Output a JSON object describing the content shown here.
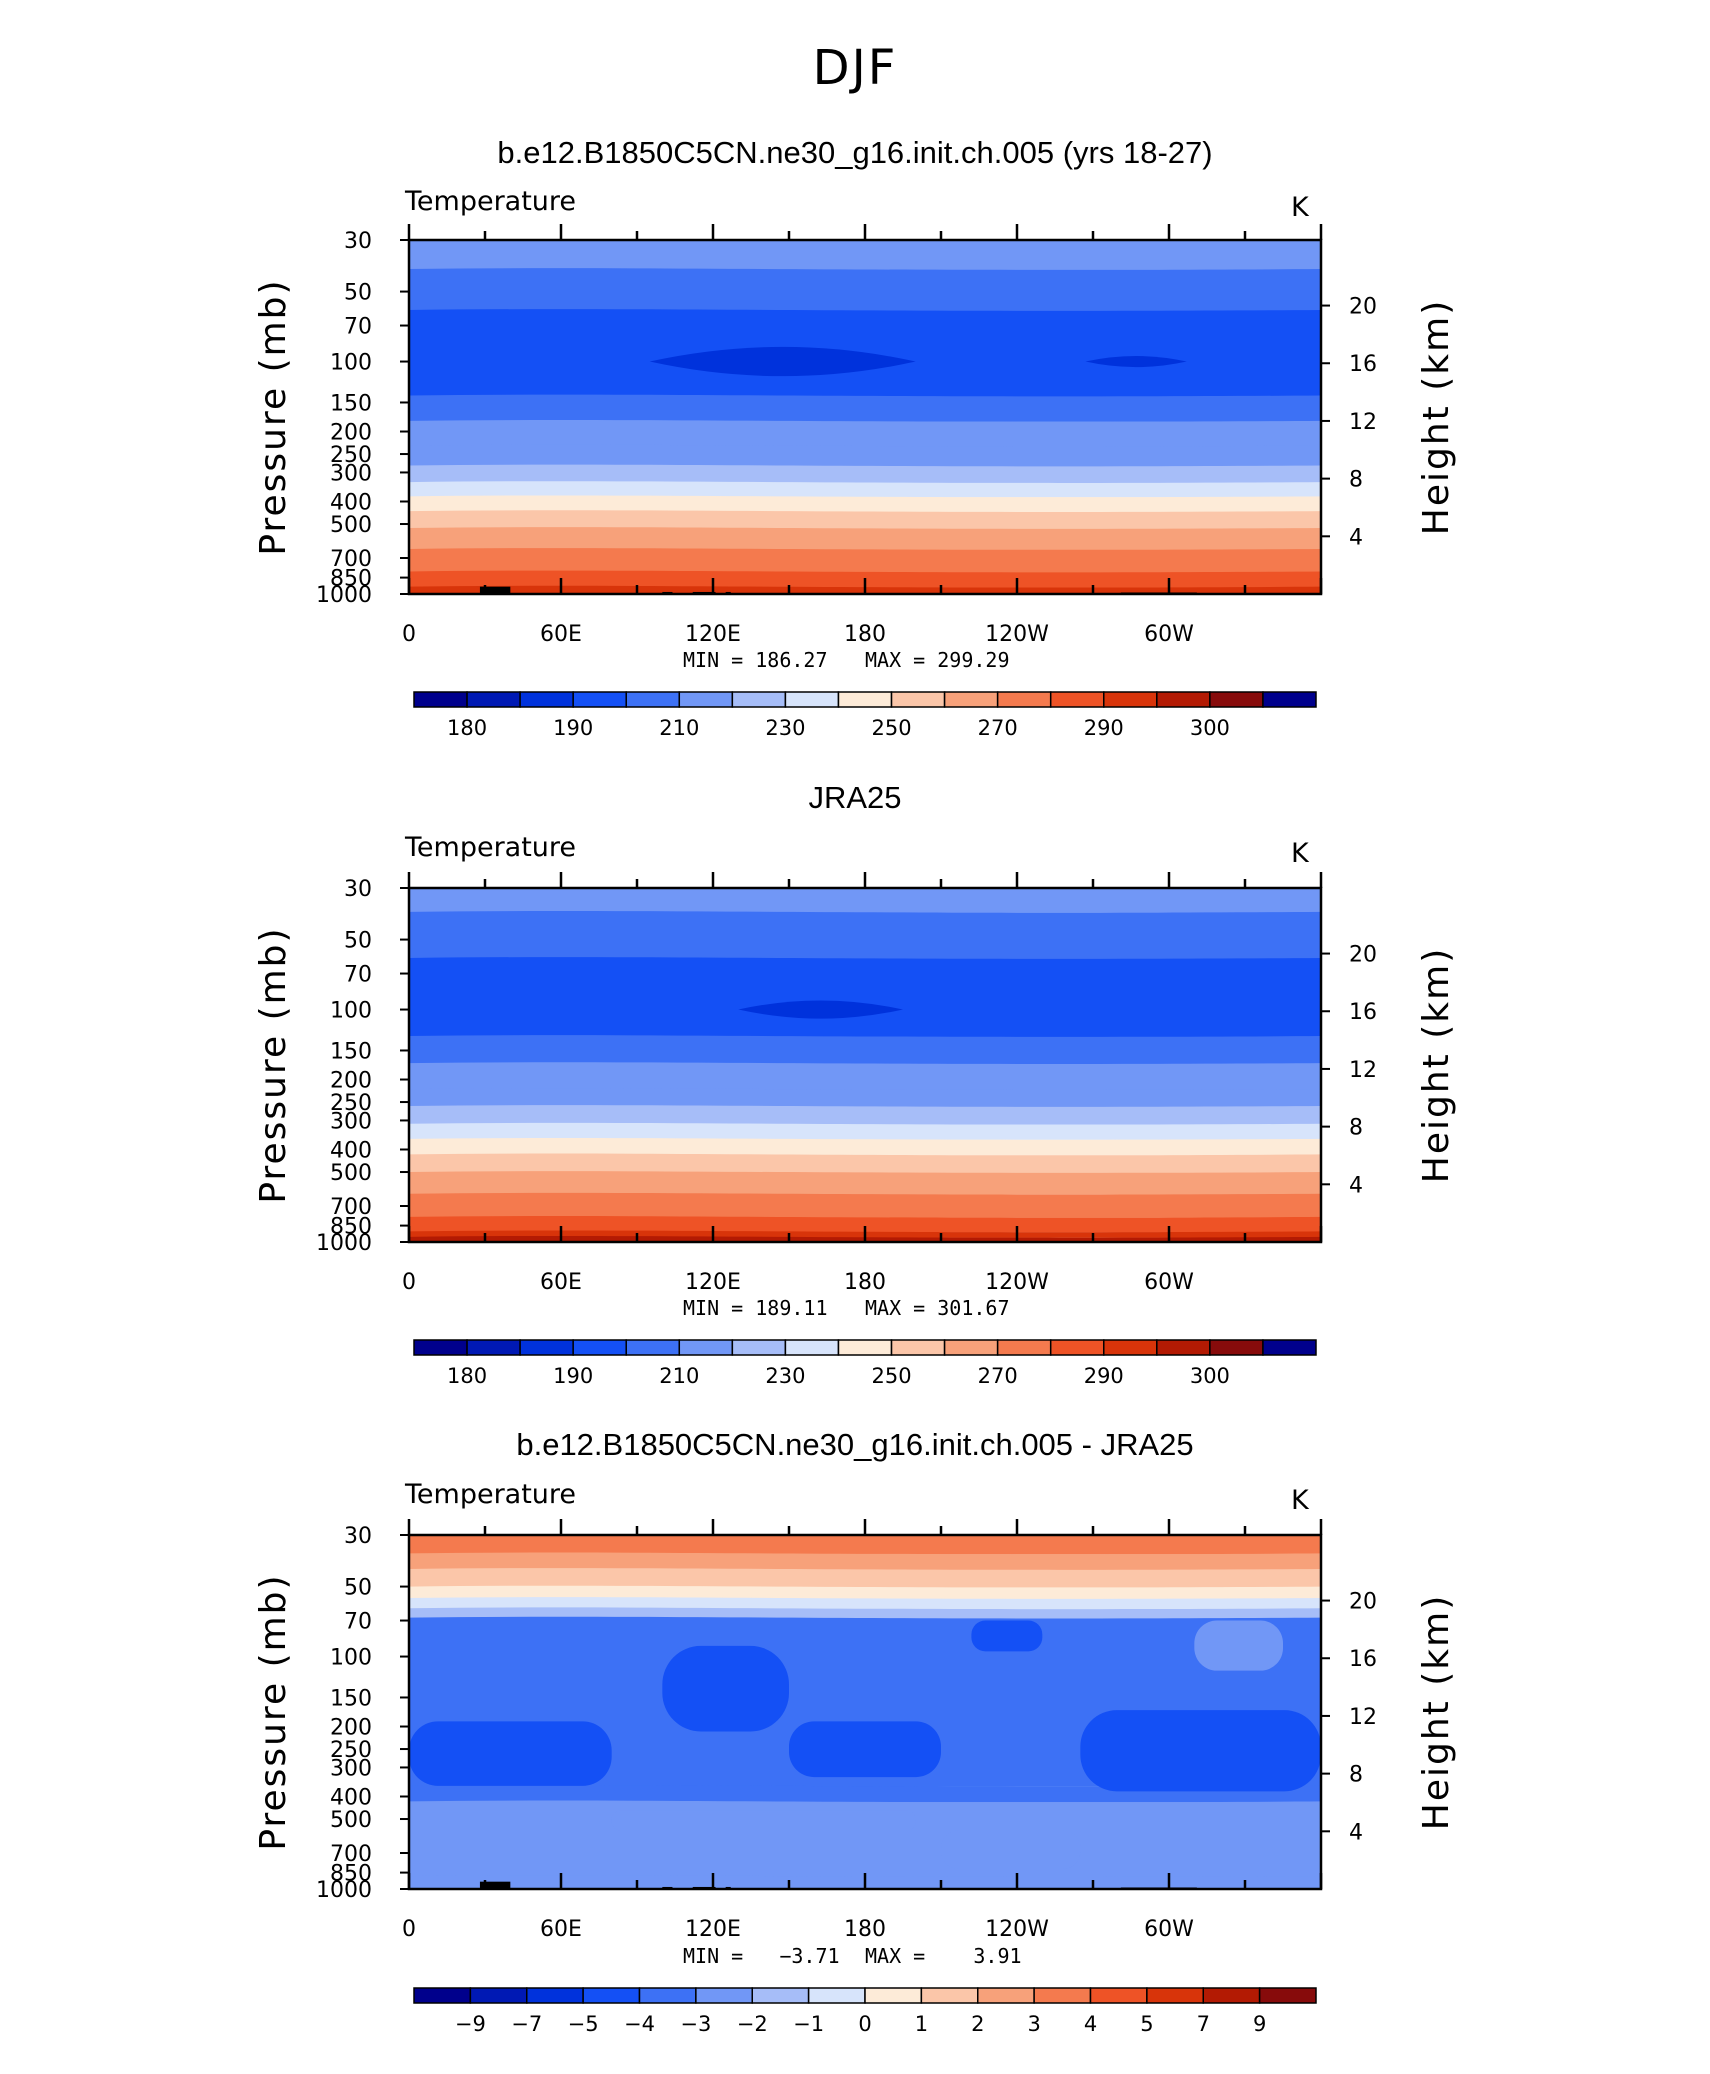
{
  "figure": {
    "title": "DJF"
  },
  "chart_data": [
    {
      "type": "heatmap",
      "title": "b.e12.B1850C5CN.ne30_g16.init.ch.005 (yrs 18-27)",
      "variable": "Temperature",
      "units": "K",
      "xlabel": "",
      "ylabel": "Pressure (mb)",
      "ylabel_right": "Height (km)",
      "x_ticks": [
        "0",
        "60E",
        "120E",
        "180",
        "120W",
        "60W"
      ],
      "x_tick_values": [
        0,
        60,
        120,
        180,
        240,
        300
      ],
      "xlim": [
        0,
        360
      ],
      "pressure_ticks": [
        30,
        50,
        70,
        100,
        150,
        200,
        250,
        300,
        400,
        500,
        700,
        850,
        1000
      ],
      "ylim": [
        1000,
        30
      ],
      "height_ticks": [
        20,
        16,
        12,
        8,
        4
      ],
      "min_text": "MIN = 186.27",
      "max_text": "MAX = 299.29",
      "min": 186.27,
      "max": 299.29,
      "colorbar_labels": [
        "180",
        "190",
        "210",
        "230",
        "250",
        "270",
        "290",
        "300"
      ],
      "colorbar_values": [
        175,
        180,
        185,
        190,
        200,
        210,
        220,
        230,
        240,
        250,
        260,
        270,
        280,
        290,
        295,
        300
      ],
      "bands": [
        {
          "p": 30,
          "value": 215
        },
        {
          "p": 40,
          "value": 205
        },
        {
          "p": 60,
          "value": 195
        },
        {
          "p": 100,
          "value": 195
        },
        {
          "p": 140,
          "value": 200
        },
        {
          "p": 180,
          "value": 210
        },
        {
          "p": 230,
          "value": 215
        },
        {
          "p": 280,
          "value": 225
        },
        {
          "p": 330,
          "value": 235
        },
        {
          "p": 380,
          "value": 245
        },
        {
          "p": 440,
          "value": 255
        },
        {
          "p": 520,
          "value": 265
        },
        {
          "p": 640,
          "value": 275
        },
        {
          "p": 800,
          "value": 285
        },
        {
          "p": 930,
          "value": 292
        }
      ],
      "cold_cores": [
        {
          "lon_start": 95,
          "lon_end": 200,
          "p_center": 100,
          "value": 185
        },
        {
          "lon_start": 267,
          "lon_end": 307,
          "p_center": 100,
          "value": 185
        }
      ],
      "topography": true
    },
    {
      "type": "heatmap",
      "title": "JRA25",
      "variable": "Temperature",
      "units": "K",
      "xlabel": "",
      "ylabel": "Pressure (mb)",
      "ylabel_right": "Height (km)",
      "x_ticks": [
        "0",
        "60E",
        "120E",
        "180",
        "120W",
        "60W"
      ],
      "x_tick_values": [
        0,
        60,
        120,
        180,
        240,
        300
      ],
      "xlim": [
        0,
        360
      ],
      "pressure_ticks": [
        30,
        50,
        70,
        100,
        150,
        200,
        250,
        300,
        400,
        500,
        700,
        850,
        1000
      ],
      "ylim": [
        1000,
        30
      ],
      "height_ticks": [
        20,
        16,
        12,
        8,
        4
      ],
      "min_text": "MIN = 189.11",
      "max_text": "MAX = 301.67",
      "min": 189.11,
      "max": 301.67,
      "colorbar_labels": [
        "180",
        "190",
        "210",
        "230",
        "250",
        "270",
        "290",
        "300"
      ],
      "colorbar_values": [
        175,
        180,
        185,
        190,
        200,
        210,
        220,
        230,
        240,
        250,
        260,
        270,
        280,
        290,
        295,
        300
      ],
      "bands": [
        {
          "p": 30,
          "value": 215
        },
        {
          "p": 38,
          "value": 205
        },
        {
          "p": 60,
          "value": 195
        },
        {
          "p": 130,
          "value": 200
        },
        {
          "p": 170,
          "value": 210
        },
        {
          "p": 220,
          "value": 215
        },
        {
          "p": 260,
          "value": 225
        },
        {
          "p": 310,
          "value": 235
        },
        {
          "p": 360,
          "value": 245
        },
        {
          "p": 420,
          "value": 255
        },
        {
          "p": 500,
          "value": 265
        },
        {
          "p": 620,
          "value": 275
        },
        {
          "p": 780,
          "value": 285
        },
        {
          "p": 900,
          "value": 292
        },
        {
          "p": 950,
          "value": 297
        }
      ],
      "cold_cores": [
        {
          "lon_start": 130,
          "lon_end": 195,
          "p_center": 100,
          "value": 185
        }
      ],
      "topography": false
    },
    {
      "type": "heatmap",
      "title": "b.e12.B1850C5CN.ne30_g16.init.ch.005 - JRA25",
      "variable": "Temperature",
      "units": "K",
      "xlabel": "",
      "ylabel": "Pressure (mb)",
      "ylabel_right": "Height (km)",
      "x_ticks": [
        "0",
        "60E",
        "120E",
        "180",
        "120W",
        "60W"
      ],
      "x_tick_values": [
        0,
        60,
        120,
        180,
        240,
        300
      ],
      "xlim": [
        0,
        360
      ],
      "pressure_ticks": [
        30,
        50,
        70,
        100,
        150,
        200,
        250,
        300,
        400,
        500,
        700,
        850,
        1000
      ],
      "ylim": [
        1000,
        30
      ],
      "height_ticks": [
        20,
        16,
        12,
        8,
        4
      ],
      "min_text": "MIN =   −3.71",
      "max_text": "MAX =    3.91",
      "min": -3.71,
      "max": 3.91,
      "colorbar_labels": [
        "−9",
        "−7",
        "−5",
        "−4",
        "−3",
        "−2",
        "−1",
        "0",
        "1",
        "2",
        "3",
        "4",
        "5",
        "7",
        "9"
      ],
      "colorbar_values": [
        -9,
        -7,
        -5,
        -4,
        -3,
        -2,
        -1,
        0,
        1,
        2,
        3,
        4,
        5,
        7,
        9
      ],
      "bands": [
        {
          "p": 30,
          "value": 4.5
        },
        {
          "p": 36,
          "value": 3.5
        },
        {
          "p": 42,
          "value": 2.5
        },
        {
          "p": 50,
          "value": 1.5
        },
        {
          "p": 56,
          "value": 0.5
        },
        {
          "p": 62,
          "value": -0.5
        },
        {
          "p": 68,
          "value": -2.5
        },
        {
          "p": 360,
          "value": -2.5
        },
        {
          "p": 420,
          "value": -1.5
        },
        {
          "p": 880,
          "value": -1.5
        }
      ],
      "anomaly_patches": [
        {
          "lon_start": 0,
          "lon_end": 80,
          "p_top": 190,
          "p_bottom": 360,
          "value": -3.5
        },
        {
          "lon_start": 100,
          "lon_end": 150,
          "p_top": 90,
          "p_bottom": 210,
          "value": -3.5
        },
        {
          "lon_start": 150,
          "lon_end": 210,
          "p_top": 190,
          "p_bottom": 330,
          "value": -3.5
        },
        {
          "lon_start": 265,
          "lon_end": 360,
          "p_top": 170,
          "p_bottom": 380,
          "value": -3.5
        },
        {
          "lon_start": 222,
          "lon_end": 250,
          "p_top": 70,
          "p_bottom": 95,
          "value": -3.5
        },
        {
          "lon_start": 310,
          "lon_end": 345,
          "p_top": 70,
          "p_bottom": 115,
          "value": -1.5
        },
        {
          "lon_start": 80,
          "lon_end": 200,
          "p_top": 460,
          "p_bottom": 560,
          "value": -1.5
        },
        {
          "lon_start": 210,
          "lon_end": 265,
          "p_top": 560,
          "p_bottom": 820,
          "value": -1.5
        }
      ],
      "topography": true
    }
  ],
  "colors": {
    "palette": [
      "#00008c",
      "#0019b4",
      "#0032dc",
      "#1450f5",
      "#3d71f5",
      "#7197f6",
      "#a6bdf8",
      "#d7e4fb",
      "#fdebd8",
      "#fbc6a9",
      "#f7a17a",
      "#f47a4e",
      "#ee5326",
      "#d8340a",
      "#b31a03",
      "#870b0b"
    ]
  }
}
